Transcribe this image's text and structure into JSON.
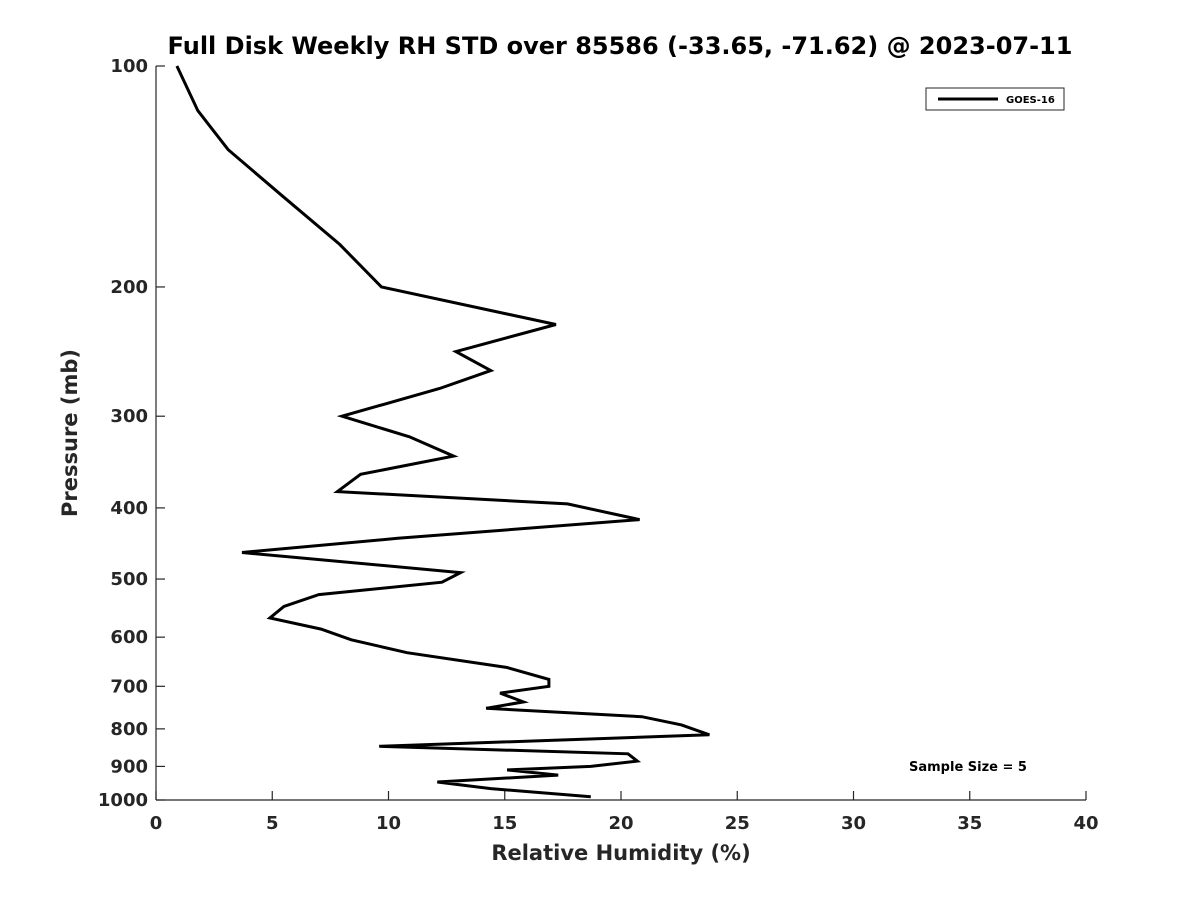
{
  "chart_data": {
    "type": "line",
    "title": "Full Disk Weekly RH STD over 85586 (-33.65, -71.62) @ 2023-07-11",
    "xlabel": "Relative Humidity (%)",
    "ylabel": "Pressure (mb)",
    "xlim": [
      0,
      40
    ],
    "ylim": [
      100,
      1000
    ],
    "y_scale": "log",
    "y_reversed": true,
    "x_ticks": [
      0,
      5,
      10,
      15,
      20,
      25,
      30,
      35,
      40
    ],
    "y_ticks": [
      100,
      200,
      300,
      400,
      500,
      600,
      700,
      800,
      900,
      1000
    ],
    "grid": false,
    "legend_position": "top-right",
    "series": [
      {
        "name": "GOES-16",
        "color": "#000000",
        "x": [
          0.9,
          1.8,
          3.1,
          5.4,
          7.9,
          9.7,
          17.2,
          12.9,
          14.4,
          12.2,
          8.0,
          10.9,
          12.8,
          8.8,
          7.8,
          17.7,
          20.8,
          10.4,
          3.7,
          13.1,
          12.3,
          7.0,
          5.5,
          4.9,
          7.1,
          8.4,
          10.8,
          15.1,
          16.9,
          16.9,
          14.8,
          15.8,
          14.2,
          20.9,
          22.6,
          23.8,
          9.6,
          20.3,
          20.7,
          18.7,
          15.1,
          17.3,
          12.1,
          14.4,
          18.7
        ],
        "y": [
          100,
          115,
          130,
          150,
          175,
          200,
          225,
          245,
          260,
          275,
          300,
          320,
          340,
          360,
          380,
          395,
          415,
          440,
          460,
          490,
          505,
          525,
          545,
          565,
          585,
          605,
          630,
          660,
          685,
          700,
          715,
          735,
          750,
          770,
          790,
          815,
          845,
          865,
          885,
          900,
          910,
          925,
          945,
          965,
          990
        ]
      }
    ],
    "annotations": [
      "Sample Size = 5"
    ]
  }
}
